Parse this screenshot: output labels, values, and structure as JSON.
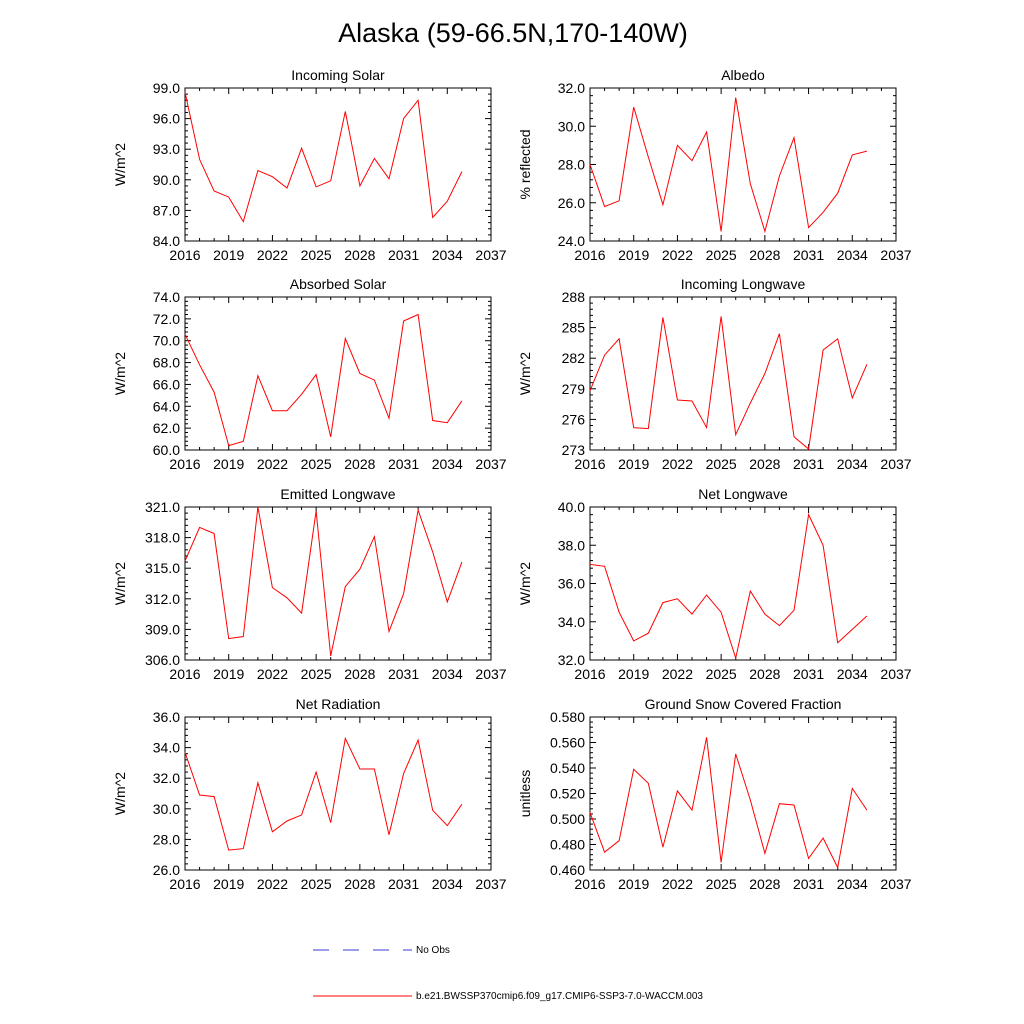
{
  "figure_title": "Alaska (59-66.5N,170-140W)",
  "colors": {
    "series": "#ff0000",
    "obs": "#3b3bcc",
    "axis": "#000000"
  },
  "legend": {
    "obs_label": "No Obs",
    "model_label": "b.e21.BWSSP370cmip6.f09_g17.CMIP6-SSP3-7.0-WACCM.003"
  },
  "chart_data": [
    {
      "type": "line",
      "title": "Incoming Solar",
      "ylabel": "W/m^2",
      "xlabel": "",
      "xlim": [
        2016,
        2037
      ],
      "ylim": [
        84.0,
        99.0
      ],
      "xticks": [
        2016,
        2019,
        2022,
        2025,
        2028,
        2031,
        2034,
        2037
      ],
      "xtick_labels": [
        "2016",
        "2019",
        "2022",
        "2025",
        "2028",
        "2031",
        "2034",
        "2037"
      ],
      "yticks": [
        84.0,
        87.0,
        90.0,
        93.0,
        96.0,
        99.0
      ],
      "ytick_labels": [
        "84.0",
        "87.0",
        "90.0",
        "93.0",
        "96.0",
        "99.0"
      ],
      "series": [
        {
          "name": "b.e21.BWSSP370cmip6.f09_g17.CMIP6-SSP3-7.0-WACCM.003",
          "x": [
            2016,
            2017,
            2018,
            2019,
            2020,
            2021,
            2022,
            2023,
            2024,
            2025,
            2026,
            2027,
            2028,
            2029,
            2030,
            2031,
            2032,
            2033,
            2034,
            2035
          ],
          "y": [
            98.6,
            92.0,
            88.9,
            88.3,
            85.9,
            90.9,
            90.3,
            89.2,
            93.1,
            89.3,
            89.9,
            96.7,
            89.4,
            92.1,
            90.1,
            96.0,
            97.8,
            86.3,
            87.9,
            90.8
          ]
        }
      ]
    },
    {
      "type": "line",
      "title": "Albedo",
      "ylabel": "% reflected",
      "xlabel": "",
      "xlim": [
        2016,
        2037
      ],
      "ylim": [
        24.0,
        32.0
      ],
      "xticks": [
        2016,
        2019,
        2022,
        2025,
        2028,
        2031,
        2034,
        2037
      ],
      "xtick_labels": [
        "2016",
        "2019",
        "2022",
        "2025",
        "2028",
        "2031",
        "2034",
        "2037"
      ],
      "yticks": [
        24.0,
        26.0,
        28.0,
        30.0,
        32.0
      ],
      "ytick_labels": [
        "24.0",
        "26.0",
        "28.0",
        "30.0",
        "32.0"
      ],
      "series": [
        {
          "name": "b.e21.BWSSP370cmip6.f09_g17.CMIP6-SSP3-7.0-WACCM.003",
          "x": [
            2016,
            2017,
            2018,
            2019,
            2020,
            2021,
            2022,
            2023,
            2024,
            2025,
            2026,
            2027,
            2028,
            2029,
            2030,
            2031,
            2032,
            2033,
            2034,
            2035
          ],
          "y": [
            28.0,
            25.8,
            26.1,
            31.0,
            28.4,
            25.9,
            29.0,
            28.2,
            29.7,
            24.5,
            31.5,
            27.0,
            24.5,
            27.4,
            29.4,
            24.7,
            25.5,
            26.5,
            28.5,
            28.7
          ]
        }
      ]
    },
    {
      "type": "line",
      "title": "Absorbed Solar",
      "ylabel": "W/m^2",
      "xlabel": "",
      "xlim": [
        2016,
        2037
      ],
      "ylim": [
        60.0,
        74.0
      ],
      "xticks": [
        2016,
        2019,
        2022,
        2025,
        2028,
        2031,
        2034,
        2037
      ],
      "xtick_labels": [
        "2016",
        "2019",
        "2022",
        "2025",
        "2028",
        "2031",
        "2034",
        "2037"
      ],
      "yticks": [
        60.0,
        62.0,
        64.0,
        66.0,
        68.0,
        70.0,
        72.0,
        74.0
      ],
      "ytick_labels": [
        "60.0",
        "62.0",
        "64.0",
        "66.0",
        "68.0",
        "70.0",
        "72.0",
        "74.0"
      ],
      "series": [
        {
          "name": "b.e21.BWSSP370cmip6.f09_g17.CMIP6-SSP3-7.0-WACCM.003",
          "x": [
            2016,
            2017,
            2018,
            2019,
            2020,
            2021,
            2022,
            2023,
            2024,
            2025,
            2026,
            2027,
            2028,
            2029,
            2030,
            2031,
            2032,
            2033,
            2034,
            2035
          ],
          "y": [
            70.6,
            67.8,
            65.3,
            60.4,
            60.8,
            66.8,
            63.6,
            63.6,
            65.1,
            66.9,
            61.2,
            70.2,
            67.0,
            66.4,
            62.9,
            71.8,
            72.4,
            62.7,
            62.5,
            64.5
          ]
        }
      ]
    },
    {
      "type": "line",
      "title": "Incoming Longwave",
      "ylabel": "W/m^2",
      "xlabel": "",
      "xlim": [
        2016,
        2037
      ],
      "ylim": [
        273,
        288
      ],
      "xticks": [
        2016,
        2019,
        2022,
        2025,
        2028,
        2031,
        2034,
        2037
      ],
      "xtick_labels": [
        "2016",
        "2019",
        "2022",
        "2025",
        "2028",
        "2031",
        "2034",
        "2037"
      ],
      "yticks": [
        273,
        276,
        279,
        282,
        285,
        288
      ],
      "ytick_labels": [
        "273",
        "276",
        "279",
        "282",
        "285",
        "288"
      ],
      "series": [
        {
          "name": "b.e21.BWSSP370cmip6.f09_g17.CMIP6-SSP3-7.0-WACCM.003",
          "x": [
            2016,
            2017,
            2018,
            2019,
            2020,
            2021,
            2022,
            2023,
            2024,
            2025,
            2026,
            2027,
            2028,
            2029,
            2030,
            2031,
            2032,
            2033,
            2034,
            2035
          ],
          "y": [
            278.8,
            282.3,
            283.9,
            275.2,
            275.1,
            286.0,
            277.9,
            277.8,
            275.2,
            286.1,
            274.5,
            277.6,
            280.5,
            284.4,
            274.3,
            273.1,
            282.8,
            283.9,
            278.1,
            281.4
          ]
        }
      ]
    },
    {
      "type": "line",
      "title": "Emitted Longwave",
      "ylabel": "W/m^2",
      "xlabel": "",
      "xlim": [
        2016,
        2037
      ],
      "ylim": [
        306.0,
        321.0
      ],
      "xticks": [
        2016,
        2019,
        2022,
        2025,
        2028,
        2031,
        2034,
        2037
      ],
      "xtick_labels": [
        "2016",
        "2019",
        "2022",
        "2025",
        "2028",
        "2031",
        "2034",
        "2037"
      ],
      "yticks": [
        306.0,
        309.0,
        312.0,
        315.0,
        318.0,
        321.0
      ],
      "ytick_labels": [
        "306.0",
        "309.0",
        "312.0",
        "315.0",
        "318.0",
        "321.0"
      ],
      "series": [
        {
          "name": "b.e21.BWSSP370cmip6.f09_g17.CMIP6-SSP3-7.0-WACCM.003",
          "x": [
            2016,
            2017,
            2018,
            2019,
            2020,
            2021,
            2022,
            2023,
            2024,
            2025,
            2026,
            2027,
            2028,
            2029,
            2030,
            2031,
            2032,
            2033,
            2034,
            2035
          ],
          "y": [
            315.7,
            319.0,
            318.4,
            308.1,
            308.3,
            321.0,
            313.1,
            312.1,
            310.6,
            320.6,
            306.4,
            313.2,
            314.9,
            318.1,
            308.8,
            312.5,
            320.7,
            316.6,
            311.7,
            315.6
          ]
        }
      ]
    },
    {
      "type": "line",
      "title": "Net Longwave",
      "ylabel": "W/m^2",
      "xlabel": "",
      "xlim": [
        2016,
        2037
      ],
      "ylim": [
        32.0,
        40.0
      ],
      "xticks": [
        2016,
        2019,
        2022,
        2025,
        2028,
        2031,
        2034,
        2037
      ],
      "xtick_labels": [
        "2016",
        "2019",
        "2022",
        "2025",
        "2028",
        "2031",
        "2034",
        "2037"
      ],
      "yticks": [
        32.0,
        34.0,
        36.0,
        38.0,
        40.0
      ],
      "ytick_labels": [
        "32.0",
        "34.0",
        "36.0",
        "38.0",
        "40.0"
      ],
      "series": [
        {
          "name": "b.e21.BWSSP370cmip6.f09_g17.CMIP6-SSP3-7.0-WACCM.003",
          "x": [
            2016,
            2017,
            2018,
            2019,
            2020,
            2021,
            2022,
            2023,
            2024,
            2025,
            2026,
            2027,
            2028,
            2029,
            2030,
            2031,
            2032,
            2033,
            2034,
            2035
          ],
          "y": [
            37.0,
            36.9,
            34.5,
            33.0,
            33.4,
            35.0,
            35.2,
            34.4,
            35.4,
            34.5,
            32.1,
            35.6,
            34.4,
            33.8,
            34.6,
            39.6,
            38.0,
            32.9,
            33.6,
            34.3
          ]
        }
      ]
    },
    {
      "type": "line",
      "title": "Net Radiation",
      "ylabel": "W/m^2",
      "xlabel": "",
      "xlim": [
        2016,
        2037
      ],
      "ylim": [
        26.0,
        36.0
      ],
      "xticks": [
        2016,
        2019,
        2022,
        2025,
        2028,
        2031,
        2034,
        2037
      ],
      "xtick_labels": [
        "2016",
        "2019",
        "2022",
        "2025",
        "2028",
        "2031",
        "2034",
        "2037"
      ],
      "yticks": [
        26.0,
        28.0,
        30.0,
        32.0,
        34.0,
        36.0
      ],
      "ytick_labels": [
        "26.0",
        "28.0",
        "30.0",
        "32.0",
        "34.0",
        "36.0"
      ],
      "series": [
        {
          "name": "b.e21.BWSSP370cmip6.f09_g17.CMIP6-SSP3-7.0-WACCM.003",
          "x": [
            2016,
            2017,
            2018,
            2019,
            2020,
            2021,
            2022,
            2023,
            2024,
            2025,
            2026,
            2027,
            2028,
            2029,
            2030,
            2031,
            2032,
            2033,
            2034,
            2035
          ],
          "y": [
            33.7,
            30.9,
            30.8,
            27.3,
            27.4,
            31.7,
            28.5,
            29.2,
            29.6,
            32.4,
            29.1,
            34.6,
            32.6,
            32.6,
            28.3,
            32.3,
            34.5,
            29.9,
            28.9,
            30.3
          ]
        }
      ]
    },
    {
      "type": "line",
      "title": "Ground Snow Covered Fraction",
      "ylabel": "unitless",
      "xlabel": "",
      "xlim": [
        2016,
        2037
      ],
      "ylim": [
        0.46,
        0.58
      ],
      "xticks": [
        2016,
        2019,
        2022,
        2025,
        2028,
        2031,
        2034,
        2037
      ],
      "xtick_labels": [
        "2016",
        "2019",
        "2022",
        "2025",
        "2028",
        "2031",
        "2034",
        "2037"
      ],
      "yticks": [
        0.46,
        0.48,
        0.5,
        0.52,
        0.54,
        0.56,
        0.58
      ],
      "ytick_labels": [
        "0.460",
        "0.480",
        "0.500",
        "0.520",
        "0.540",
        "0.560",
        "0.580"
      ],
      "series": [
        {
          "name": "b.e21.BWSSP370cmip6.f09_g17.CMIP6-SSP3-7.0-WACCM.003",
          "x": [
            2016,
            2017,
            2018,
            2019,
            2020,
            2021,
            2022,
            2023,
            2024,
            2025,
            2026,
            2027,
            2028,
            2029,
            2030,
            2031,
            2032,
            2033,
            2034,
            2035
          ],
          "y": [
            0.505,
            0.474,
            0.483,
            0.539,
            0.528,
            0.478,
            0.522,
            0.507,
            0.564,
            0.466,
            0.551,
            0.515,
            0.473,
            0.512,
            0.511,
            0.469,
            0.485,
            0.462,
            0.524,
            0.507
          ]
        }
      ]
    }
  ]
}
